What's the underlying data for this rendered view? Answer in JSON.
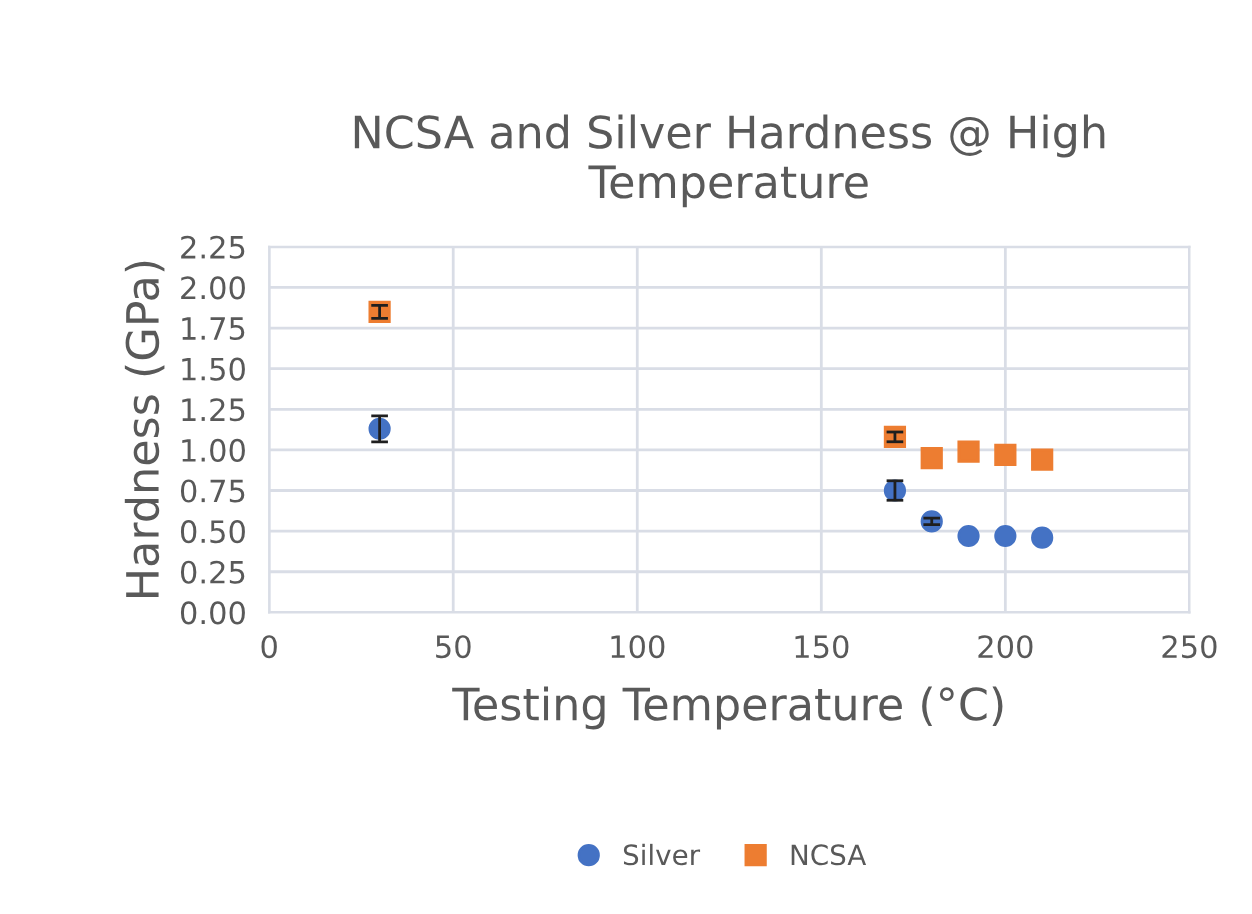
{
  "chart_data": {
    "type": "scatter",
    "title": "NCSA and Silver Hardness @ High Temperature",
    "xlabel": "Testing Temperature (°C)",
    "ylabel": "Hardness (GPa)",
    "x": [
      30,
      170,
      180,
      190,
      200,
      210
    ],
    "series": [
      {
        "name": "Silver",
        "color": "#4472c4",
        "marker": "circle",
        "values": [
          1.13,
          0.75,
          0.56,
          0.47,
          0.47,
          0.46
        ],
        "errors": [
          0.08,
          0.06,
          0.02,
          null,
          null,
          null
        ]
      },
      {
        "name": "NCSA",
        "color": "#ed7d31",
        "marker": "square",
        "values": [
          1.85,
          1.08,
          0.95,
          0.99,
          0.97,
          0.94
        ],
        "errors": [
          0.04,
          0.03,
          null,
          null,
          null,
          null
        ]
      }
    ],
    "xlim": [
      0,
      250
    ],
    "xticks": [
      0,
      50,
      100,
      150,
      200,
      250
    ],
    "ylim": [
      0,
      2.25
    ],
    "yticks": [
      {
        "value": 0,
        "label": "0.00"
      },
      {
        "value": 0.25,
        "label": "0.25"
      },
      {
        "value": 0.5,
        "label": "0.50"
      },
      {
        "value": 0.75,
        "label": "0.75"
      },
      {
        "value": 1,
        "label": "1.00"
      },
      {
        "value": 1.25,
        "label": "1.25"
      },
      {
        "value": 1.5,
        "label": "1.50"
      },
      {
        "value": 1.75,
        "label": "1.75"
      },
      {
        "value": 2,
        "label": "2.00"
      },
      {
        "value": 2.25,
        "label": "2.25"
      }
    ],
    "grid": true,
    "legend": "bottom"
  }
}
